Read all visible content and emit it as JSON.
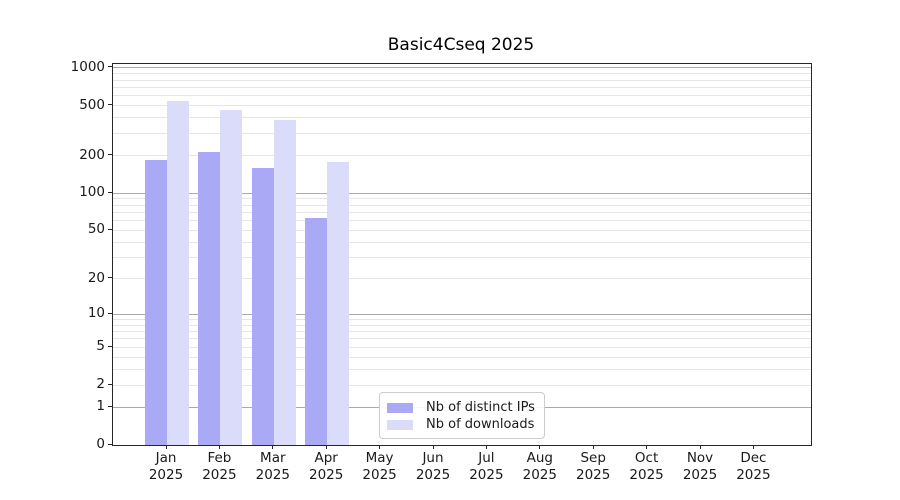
{
  "chart_data": {
    "type": "bar",
    "title": "Basic4Cseq 2025",
    "categories": [
      "Jan 2025",
      "Feb 2025",
      "Mar 2025",
      "Apr 2025",
      "May 2025",
      "Jun 2025",
      "Jul 2025",
      "Aug 2025",
      "Sep 2025",
      "Oct 2025",
      "Nov 2025",
      "Dec 2025"
    ],
    "series": [
      {
        "name": "Nb of distinct IPs",
        "color": "#a9a9f5",
        "values": [
          183,
          215,
          158,
          63,
          null,
          null,
          null,
          null,
          null,
          null,
          null,
          null
        ]
      },
      {
        "name": "Nb of downloads",
        "color": "#dbdbfa",
        "values": [
          546,
          460,
          385,
          179,
          null,
          null,
          null,
          null,
          null,
          null,
          null,
          null
        ]
      }
    ],
    "xlabel": "",
    "ylabel": "",
    "y_scale": "log10(1+x)",
    "y_ticks": [
      0,
      1,
      2,
      5,
      10,
      20,
      50,
      100,
      200,
      500,
      1000
    ],
    "y_major_gridlines": [
      1,
      10,
      100,
      1000
    ],
    "ylim": [
      0,
      1080
    ],
    "grid": true,
    "legend_position": "lower-center"
  },
  "colors": {
    "major_grid": "#aaaaaa",
    "minor_grid": "#e6e6e6",
    "axis": "#262626",
    "legend_border": "#cccccc",
    "background": "#ffffff"
  }
}
